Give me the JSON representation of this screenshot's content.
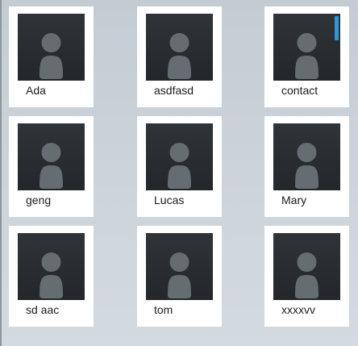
{
  "contacts": [
    {
      "name": "Ada"
    },
    {
      "name": "asdfasd"
    },
    {
      "name": "contact"
    },
    {
      "name": "geng"
    },
    {
      "name": "Lucas"
    },
    {
      "name": "Mary"
    },
    {
      "name": "sd aac"
    },
    {
      "name": "tom"
    },
    {
      "name": "xxxxvv"
    }
  ],
  "icons": {
    "avatar_placeholder": "person-silhouette-icon"
  },
  "colors": {
    "background": "#c9d1d7",
    "card": "#ffffff",
    "photo_background": "#2a2e31",
    "silhouette": "#656c72",
    "scroll_indicator": "#2e97d6"
  }
}
